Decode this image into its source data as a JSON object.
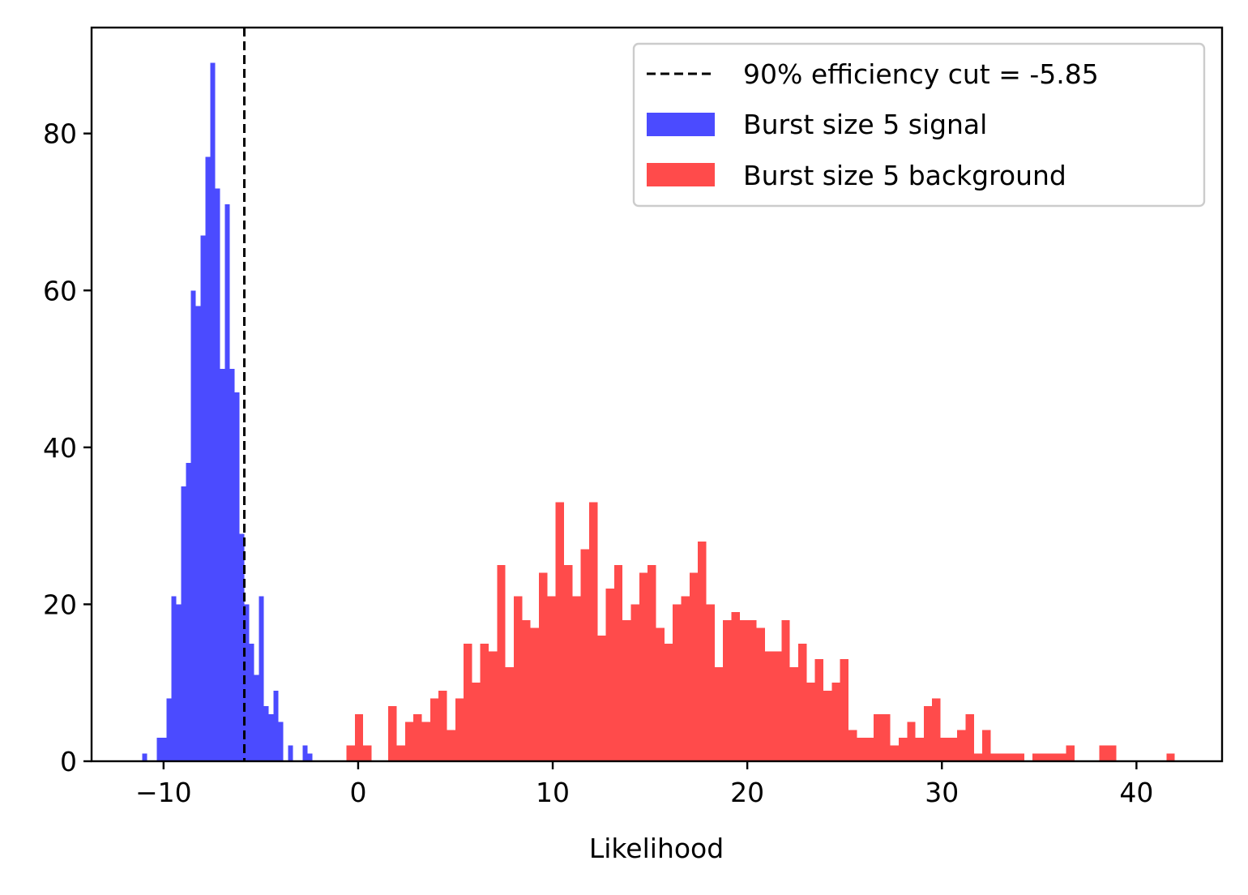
{
  "chart_data": {
    "type": "histogram",
    "title": "",
    "xlabel": "Likelihood",
    "ylabel": "",
    "xlim": [
      -13.7,
      44.4
    ],
    "ylim": [
      0,
      93.5
    ],
    "xticks": [
      -10,
      0,
      10,
      20,
      30,
      40
    ],
    "xtick_labels": [
      "−10",
      "0",
      "10",
      "20",
      "30",
      "40"
    ],
    "yticks": [
      0,
      20,
      40,
      60,
      80
    ],
    "ytick_labels": [
      "0",
      "20",
      "40",
      "60",
      "80"
    ],
    "grid": false,
    "legend_position": "top-right",
    "cut_line": {
      "label": "90% efficiency cut = -5.85",
      "x": -5.85,
      "style": "dashed",
      "color": "#000000"
    },
    "series": [
      {
        "name": "Burst size 5 signal",
        "color": "#4b4bff",
        "bin_width": 0.25,
        "bins": [
          [
            -11.1,
            1
          ],
          [
            -10.35,
            3
          ],
          [
            -10.1,
            3
          ],
          [
            -9.85,
            8
          ],
          [
            -9.6,
            21
          ],
          [
            -9.35,
            20
          ],
          [
            -9.1,
            35
          ],
          [
            -8.85,
            38
          ],
          [
            -8.6,
            60
          ],
          [
            -8.35,
            58
          ],
          [
            -8.1,
            67
          ],
          [
            -7.85,
            77
          ],
          [
            -7.6,
            89
          ],
          [
            -7.35,
            73
          ],
          [
            -7.1,
            50
          ],
          [
            -6.85,
            71
          ],
          [
            -6.6,
            50
          ],
          [
            -6.35,
            47
          ],
          [
            -6.1,
            29
          ],
          [
            -5.85,
            20
          ],
          [
            -5.6,
            15
          ],
          [
            -5.35,
            11
          ],
          [
            -5.1,
            21
          ],
          [
            -4.85,
            7
          ],
          [
            -4.6,
            6
          ],
          [
            -4.35,
            9
          ],
          [
            -4.1,
            5
          ],
          [
            -3.6,
            2
          ],
          [
            -2.85,
            2
          ],
          [
            -2.6,
            1
          ],
          [
            -0.1,
            5
          ]
        ]
      },
      {
        "name": "Burst size 5 background",
        "color": "#ff4b4b",
        "bin_width": 0.43,
        "bins": [
          [
            -0.6,
            2
          ],
          [
            -0.17,
            6
          ],
          [
            0.26,
            2
          ],
          [
            1.55,
            7
          ],
          [
            1.98,
            2
          ],
          [
            2.41,
            5
          ],
          [
            2.84,
            6
          ],
          [
            3.27,
            5
          ],
          [
            3.7,
            8
          ],
          [
            4.13,
            9
          ],
          [
            4.56,
            4
          ],
          [
            4.99,
            8
          ],
          [
            5.42,
            15
          ],
          [
            5.85,
            10
          ],
          [
            6.28,
            15
          ],
          [
            6.71,
            14
          ],
          [
            7.14,
            25
          ],
          [
            7.57,
            12
          ],
          [
            8.0,
            21
          ],
          [
            8.43,
            18
          ],
          [
            8.86,
            17
          ],
          [
            9.29,
            24
          ],
          [
            9.72,
            21
          ],
          [
            10.15,
            33
          ],
          [
            10.58,
            25
          ],
          [
            11.01,
            21
          ],
          [
            11.44,
            27
          ],
          [
            11.87,
            33
          ],
          [
            12.3,
            16
          ],
          [
            12.73,
            22
          ],
          [
            13.16,
            25
          ],
          [
            13.59,
            18
          ],
          [
            14.02,
            20
          ],
          [
            14.45,
            24
          ],
          [
            14.88,
            25
          ],
          [
            15.31,
            17
          ],
          [
            15.74,
            15
          ],
          [
            16.17,
            20
          ],
          [
            16.6,
            21
          ],
          [
            17.03,
            24
          ],
          [
            17.46,
            28
          ],
          [
            17.89,
            20
          ],
          [
            18.32,
            12
          ],
          [
            18.75,
            18
          ],
          [
            19.18,
            19
          ],
          [
            19.61,
            18
          ],
          [
            20.04,
            18
          ],
          [
            20.47,
            17
          ],
          [
            20.9,
            14
          ],
          [
            21.33,
            14
          ],
          [
            21.76,
            18
          ],
          [
            22.19,
            12
          ],
          [
            22.62,
            15
          ],
          [
            23.05,
            10
          ],
          [
            23.48,
            13
          ],
          [
            23.91,
            9
          ],
          [
            24.34,
            10
          ],
          [
            24.77,
            13
          ],
          [
            25.2,
            4
          ],
          [
            25.63,
            3
          ],
          [
            26.06,
            3
          ],
          [
            26.49,
            6
          ],
          [
            26.92,
            6
          ],
          [
            27.35,
            2
          ],
          [
            27.78,
            3
          ],
          [
            28.21,
            5
          ],
          [
            28.64,
            3
          ],
          [
            29.07,
            7
          ],
          [
            29.5,
            8
          ],
          [
            29.93,
            3
          ],
          [
            30.36,
            3
          ],
          [
            30.79,
            4
          ],
          [
            31.22,
            6
          ],
          [
            31.65,
            1
          ],
          [
            32.08,
            4
          ],
          [
            32.51,
            1
          ],
          [
            32.94,
            1
          ],
          [
            33.37,
            1
          ],
          [
            33.8,
            1
          ],
          [
            34.66,
            1
          ],
          [
            35.09,
            1
          ],
          [
            35.52,
            1
          ],
          [
            35.95,
            1
          ],
          [
            36.38,
            2
          ],
          [
            38.1,
            2
          ],
          [
            38.53,
            2
          ],
          [
            41.54,
            1
          ]
        ]
      }
    ]
  }
}
